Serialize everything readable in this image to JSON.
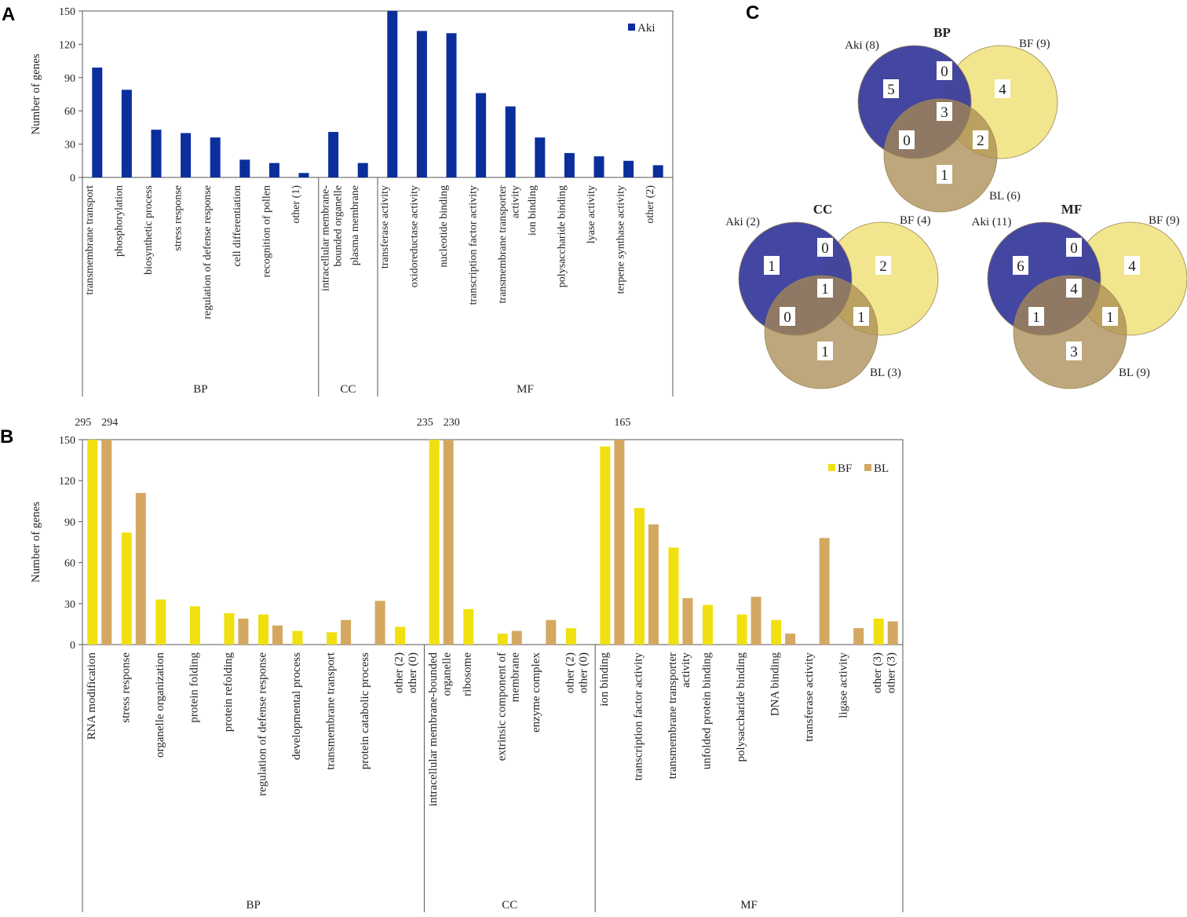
{
  "chart_data": [
    {
      "type": "bar",
      "panel_label": "A",
      "y_label": "Number of genes",
      "categories": [
        "transmembrane transport",
        "phosphorylation",
        "biosynthetic process",
        "stress response",
        "regulation of defense response",
        "cell differentiation",
        "recognition of pollen",
        "other (1)",
        "intracellular membrane-\nbounded organelle",
        "plasma membrane",
        "transferase activity",
        "oxidoreductase activity",
        "nucleotide binding",
        "transcription factor activity",
        "transmembrane transporter\nactivity",
        "ion binding",
        "polysaccharide binding",
        "lyase activity",
        "terpene synthase activity",
        "other (2)"
      ],
      "groups": [
        {
          "name": "BP",
          "size": 8
        },
        {
          "name": "CC",
          "size": 2
        },
        {
          "name": "MF",
          "size": 10
        }
      ],
      "series": [
        {
          "name": "Aki",
          "color": "#0a2f9c",
          "values": [
            99,
            79,
            43,
            40,
            36,
            16,
            13,
            4,
            41,
            13,
            150,
            132,
            130,
            76,
            64,
            36,
            22,
            19,
            15,
            11
          ]
        }
      ],
      "ylim": [
        0,
        150
      ],
      "yticks": [
        0,
        30,
        60,
        90,
        120,
        150
      ]
    },
    {
      "type": "bar",
      "panel_label": "B",
      "y_label": "Number of genes",
      "categories": [
        "RNA modification",
        "stress response",
        "organelle organization",
        "protein folding",
        "protein refolding",
        "regulation of defense response",
        "developmental process",
        "transmembrane transport",
        "protein catabolic process",
        "other (2)\nother (0)",
        "intracellular membrane-bounded\norganelle",
        "ribosome",
        "extrinsic component of\nmembrane",
        "enzyme complex",
        "other (2)\nother (0)",
        "ion binding",
        "transcription factor activity",
        "transmembrane transporter\nactivity",
        "unfolded protein binding",
        "polysaccharide binding",
        "DNA binding",
        "transferase activity",
        "ligase activity",
        "other (3)\nother (3)"
      ],
      "groups": [
        {
          "name": "BP",
          "size": 10
        },
        {
          "name": "CC",
          "size": 5
        },
        {
          "name": "MF",
          "size": 9
        }
      ],
      "series": [
        {
          "name": "BF",
          "color": "#f0e010",
          "values": [
            295,
            82,
            33,
            28,
            23,
            22,
            10,
            9,
            0,
            13,
            235,
            26,
            8,
            0,
            12,
            145,
            100,
            71,
            29,
            22,
            18,
            0,
            0,
            19
          ],
          "value_labels": [
            "295",
            null,
            null,
            null,
            null,
            null,
            null,
            null,
            null,
            null,
            "235",
            null,
            null,
            null,
            null,
            null,
            null,
            null,
            null,
            null,
            null,
            null,
            null,
            null
          ]
        },
        {
          "name": "BL",
          "color": "#d4a860",
          "values": [
            294,
            111,
            0,
            0,
            19,
            14,
            0,
            18,
            32,
            0,
            230,
            0,
            10,
            18,
            0,
            165,
            88,
            34,
            0,
            35,
            8,
            78,
            12,
            17
          ],
          "value_labels": [
            "294",
            null,
            null,
            null,
            null,
            null,
            null,
            null,
            null,
            null,
            "230",
            null,
            null,
            null,
            null,
            "165",
            null,
            null,
            null,
            null,
            null,
            null,
            null,
            null
          ]
        }
      ],
      "ylim": [
        0,
        150
      ],
      "yticks": [
        0,
        30,
        60,
        90,
        120,
        150
      ]
    }
  ],
  "venn": {
    "panel_label": "C",
    "diagrams": [
      {
        "title": "BP",
        "sets": [
          "Aki (8)",
          "BF (9)",
          "BL (6)"
        ],
        "regions": [
          5,
          0,
          4,
          3,
          0,
          2,
          1
        ]
      },
      {
        "title": "CC",
        "sets": [
          "Aki (2)",
          "BF (4)",
          "BL (3)"
        ],
        "regions": [
          1,
          0,
          2,
          1,
          0,
          1,
          1
        ]
      },
      {
        "title": "MF",
        "sets": [
          "Aki (11)",
          "BF (9)",
          "BL (9)"
        ],
        "regions": [
          6,
          0,
          4,
          4,
          1,
          1,
          3
        ]
      }
    ]
  }
}
